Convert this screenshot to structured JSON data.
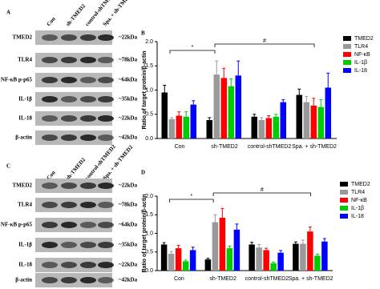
{
  "blots": [
    {
      "label": "A",
      "lanes": [
        "Con",
        "sh-TMED2",
        "control-shTMED2",
        "Spa. + sh-TMED2"
      ],
      "rows": [
        {
          "name": "TMED2",
          "size": "~22kDa"
        },
        {
          "name": "TLR4",
          "size": "~78kDa"
        },
        {
          "name": "NF-κB p-p65",
          "size": "~64kDa"
        },
        {
          "name": "IL-1β",
          "size": "~35kDa"
        },
        {
          "name": "IL-18",
          "size": "~22kDa"
        },
        {
          "name": "β-actin",
          "size": "~42kDa"
        }
      ]
    },
    {
      "label": "C",
      "lanes": [
        "Con",
        "sh-TMED2",
        "control-shTMED2",
        "Spa. + sh-TMED2"
      ],
      "rows": [
        {
          "name": "TMED2",
          "size": "~22kDa"
        },
        {
          "name": "TLR4",
          "size": "~78kDa"
        },
        {
          "name": "NF-κB p-p65",
          "size": "~64kDa"
        },
        {
          "name": "IL-1β",
          "size": "~35kDa"
        },
        {
          "name": "IL-18",
          "size": "~22kDa"
        },
        {
          "name": "β-actin",
          "size": "~42kDa"
        }
      ]
    }
  ],
  "chart_data": [
    {
      "type": "bar",
      "panel": "B",
      "y_label": "Ratio of target protein/β-actin",
      "categories": [
        "Con",
        "sh-TMED2",
        "control-shTMED2",
        "Spa. + sh-TMED2"
      ],
      "series": [
        {
          "name": "TMED2",
          "color": "#000000",
          "values": [
            0.95,
            0.38,
            0.45,
            0.9
          ],
          "errors": [
            0.15,
            0.05,
            0.05,
            0.12
          ]
        },
        {
          "name": "TLR4",
          "color": "#999999",
          "values": [
            0.4,
            1.32,
            0.38,
            0.75
          ],
          "errors": [
            0.03,
            0.28,
            0.05,
            0.12
          ]
        },
        {
          "name": "NF-κB",
          "color": "#ff0000",
          "values": [
            0.47,
            1.25,
            0.42,
            0.68
          ],
          "errors": [
            0.08,
            0.2,
            0.05,
            0.15
          ]
        },
        {
          "name": "IL-1β",
          "color": "#00cc00",
          "values": [
            0.45,
            1.08,
            0.45,
            0.65
          ],
          "errors": [
            0.1,
            0.15,
            0.05,
            0.15
          ]
        },
        {
          "name": "IL-18",
          "color": "#0000ff",
          "values": [
            0.7,
            1.3,
            0.75,
            1.05
          ],
          "errors": [
            0.08,
            0.3,
            0.05,
            0.3
          ]
        }
      ],
      "ylim": [
        0,
        2
      ],
      "yticks": [
        {
          "value": 0,
          "label": "0.0"
        },
        0.5,
        {
          "value": 1,
          "label": "1.0"
        },
        1.5,
        {
          "value": 2,
          "label": "2.0"
        }
      ],
      "annotations": [
        "*",
        "#"
      ]
    },
    {
      "type": "bar",
      "panel": "D",
      "y_label": "Ratio of target protein/β-actin",
      "categories": [
        "Con",
        "sh-TMED2",
        "control-shTMED2",
        "Spa. + sh-TMED2"
      ],
      "series": [
        {
          "name": "TMED2",
          "color": "#000000",
          "values": [
            0.7,
            0.3,
            0.7,
            0.72
          ],
          "errors": [
            0.05,
            0.03,
            0.06,
            0.05
          ]
        },
        {
          "name": "TLR4",
          "color": "#999999",
          "values": [
            0.45,
            1.3,
            0.62,
            0.72
          ],
          "errors": [
            0.06,
            0.2,
            0.08,
            0.1
          ]
        },
        {
          "name": "NF-κB",
          "color": "#ff0000",
          "values": [
            0.6,
            1.42,
            0.55,
            1.05
          ],
          "errors": [
            0.08,
            0.25,
            0.05,
            0.12
          ]
        },
        {
          "name": "IL-1β",
          "color": "#00cc00",
          "values": [
            0.25,
            0.6,
            0.2,
            0.4
          ],
          "errors": [
            0.03,
            0.06,
            0.03,
            0.04
          ]
        },
        {
          "name": "IL-18",
          "color": "#0000ff",
          "values": [
            0.55,
            1.1,
            0.48,
            0.78
          ],
          "errors": [
            0.08,
            0.15,
            0.06,
            0.08
          ]
        }
      ],
      "ylim": [
        0,
        2
      ],
      "yticks": [
        {
          "value": 0,
          "label": "0.0"
        },
        0.5,
        {
          "value": 1,
          "label": "1.0"
        },
        1.5,
        {
          "value": 2,
          "label": "2.0"
        }
      ],
      "annotations": [
        "*",
        "#"
      ]
    }
  ]
}
